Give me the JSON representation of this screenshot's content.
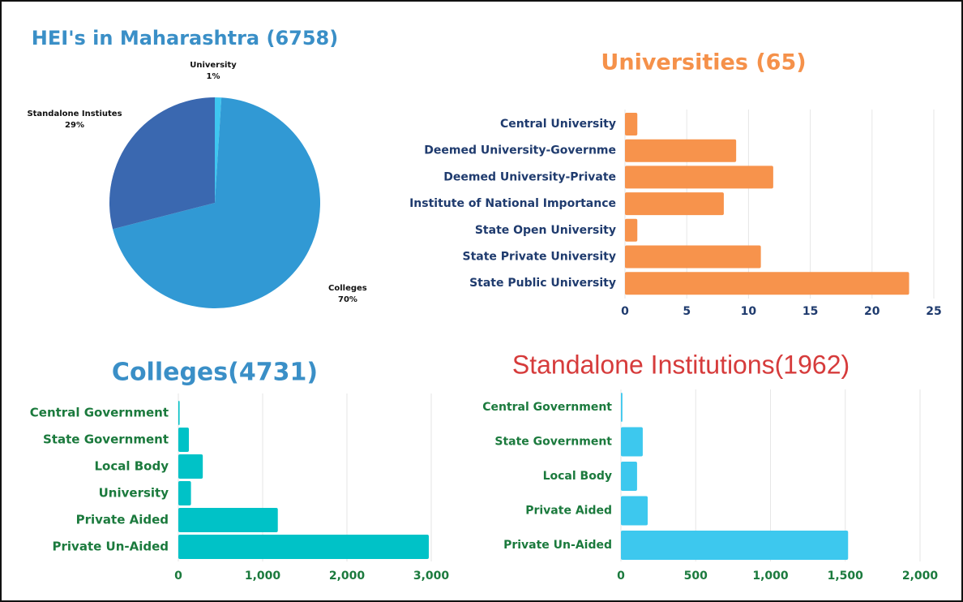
{
  "chart_data": [
    {
      "type": "pie",
      "title": "HEI's in Maharashtra (6758)",
      "categories": [
        "University",
        "Colleges",
        "Standalone Instiutes"
      ],
      "values": [
        1,
        70,
        29
      ],
      "value_labels": [
        "1%",
        "70%",
        "29%"
      ],
      "colors": [
        "#3ec6f0",
        "#3199d4",
        "#3a68b0"
      ]
    },
    {
      "type": "hbar",
      "title": "Universities (65)",
      "categories": [
        "Central University",
        "Deemed University-Governme",
        "Deemed University-Private",
        "Institute of National Importance",
        "State Open University",
        "State Private University",
        "State Public University"
      ],
      "values": [
        1,
        9,
        12,
        8,
        1,
        11,
        23
      ],
      "color": "#f7934c",
      "xlim": [
        0,
        25
      ],
      "xticks": [
        0,
        5,
        10,
        15,
        20,
        25
      ],
      "grid": true
    },
    {
      "type": "hbar",
      "title": "Colleges(4731)",
      "categories": [
        "Central Government",
        "State Government",
        "Local Body",
        "University",
        "Private Aided",
        "Private Un-Aided"
      ],
      "values": [
        15,
        125,
        290,
        150,
        1180,
        2971
      ],
      "color": "#00c2c7",
      "xlim": [
        0,
        3000
      ],
      "xticks": [
        0,
        {
          "value": 1000,
          "label": "1,000"
        },
        {
          "value": 2000,
          "label": "2,000"
        },
        {
          "value": 3000,
          "label": "3,000"
        }
      ],
      "grid": true
    },
    {
      "type": "hbar",
      "title": "Standalone Institutions(1962)",
      "categories": [
        "Central Government",
        "State Government",
        "Local Body",
        "Private Aided",
        "Private Un-Aided"
      ],
      "values": [
        10,
        146,
        108,
        179,
        1519
      ],
      "color": "#3dc8ee",
      "xlim": [
        0,
        2000
      ],
      "xticks": [
        0,
        500,
        {
          "value": 1000,
          "label": "1,000"
        },
        {
          "value": 1500,
          "label": "1,500"
        },
        {
          "value": 2000,
          "label": "2,000"
        }
      ],
      "grid": true
    }
  ]
}
